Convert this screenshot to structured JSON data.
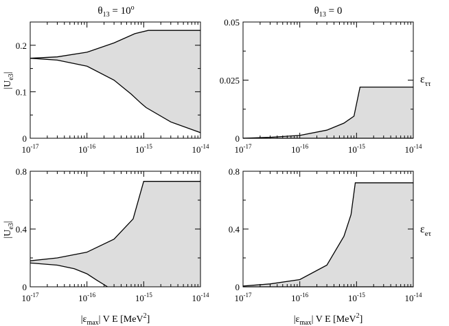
{
  "figure": {
    "column_titles": [
      {
        "base": "θ",
        "sub": "13",
        "rest": " = 10",
        "sup": "o"
      },
      {
        "base": "θ",
        "sub": "13",
        "rest": " = 0",
        "sup": ""
      }
    ],
    "row_labels": [
      {
        "base": "ε",
        "sub": "ττ"
      },
      {
        "base": "ε",
        "sub": "eτ"
      }
    ],
    "ylabel": {
      "base": "|U",
      "sub": "e3",
      "end": "|"
    },
    "xlabel": {
      "a": "|ε",
      "sub": "max",
      "b": "| V E  [MeV",
      "sup": "2",
      "c": "]"
    }
  },
  "colors": {
    "fill": "#dddddd",
    "line": "#000000",
    "axis": "#000000"
  },
  "chart_data": [
    {
      "type": "area",
      "panel": "top-left",
      "xscale": "log",
      "xlim": [
        1e-17,
        1e-14
      ],
      "ylim": [
        0,
        0.25
      ],
      "yticks": [
        {
          "v": 0,
          "label": "0"
        },
        {
          "v": 0.1,
          "label": "0.1"
        },
        {
          "v": 0.2,
          "label": "0.2"
        }
      ],
      "upper": [
        [
          1e-17,
          0.172
        ],
        [
          3e-17,
          0.175
        ],
        [
          1e-16,
          0.185
        ],
        [
          3e-16,
          0.205
        ],
        [
          7e-16,
          0.225
        ],
        [
          1.2e-15,
          0.232
        ],
        [
          1e-14,
          0.232
        ]
      ],
      "lower": [
        [
          1e-17,
          0.172
        ],
        [
          3e-17,
          0.168
        ],
        [
          1e-16,
          0.155
        ],
        [
          3e-16,
          0.125
        ],
        [
          6e-16,
          0.095
        ],
        [
          9e-16,
          0.075
        ],
        [
          1.1e-15,
          0.066
        ],
        [
          3e-15,
          0.035
        ],
        [
          1e-14,
          0.012
        ]
      ]
    },
    {
      "type": "area",
      "panel": "top-right",
      "xscale": "log",
      "xlim": [
        1e-17,
        1e-14
      ],
      "ylim": [
        0,
        0.05
      ],
      "yticks": [
        {
          "v": 0,
          "label": "0"
        },
        {
          "v": 0.025,
          "label": "0.025"
        },
        {
          "v": 0.05,
          "label": "0.05"
        }
      ],
      "upper": [
        [
          1e-17,
          0.0
        ],
        [
          3e-17,
          0.0004
        ],
        [
          1e-16,
          0.0012
        ],
        [
          3e-16,
          0.0035
        ],
        [
          6e-16,
          0.0065
        ],
        [
          9e-16,
          0.0095
        ],
        [
          1.15e-15,
          0.022
        ],
        [
          1e-14,
          0.022
        ]
      ],
      "lower": [
        [
          1e-17,
          0.0
        ],
        [
          1e-14,
          0.0
        ]
      ]
    },
    {
      "type": "area",
      "panel": "bottom-left",
      "xscale": "log",
      "xlim": [
        1e-17,
        1e-14
      ],
      "ylim": [
        0,
        0.8
      ],
      "yticks": [
        {
          "v": 0,
          "label": "0"
        },
        {
          "v": 0.4,
          "label": "0.4"
        },
        {
          "v": 0.8,
          "label": "0.8"
        }
      ],
      "upper": [
        [
          1e-17,
          0.18
        ],
        [
          3e-17,
          0.2
        ],
        [
          1e-16,
          0.24
        ],
        [
          3e-16,
          0.33
        ],
        [
          6.5e-16,
          0.47
        ],
        [
          1e-15,
          0.73
        ],
        [
          1e-14,
          0.73
        ]
      ],
      "lower": [
        [
          1e-17,
          0.165
        ],
        [
          3e-17,
          0.15
        ],
        [
          6e-17,
          0.125
        ],
        [
          1e-16,
          0.09
        ],
        [
          1.5e-16,
          0.045
        ],
        [
          2.3e-16,
          0.0
        ]
      ]
    },
    {
      "type": "area",
      "panel": "bottom-right",
      "xscale": "log",
      "xlim": [
        1e-17,
        1e-14
      ],
      "ylim": [
        0,
        0.8
      ],
      "yticks": [
        {
          "v": 0,
          "label": "0"
        },
        {
          "v": 0.4,
          "label": "0.4"
        },
        {
          "v": 0.8,
          "label": "0.8"
        }
      ],
      "upper": [
        [
          1e-17,
          0.005
        ],
        [
          3e-17,
          0.02
        ],
        [
          1e-16,
          0.05
        ],
        [
          3e-16,
          0.15
        ],
        [
          6e-16,
          0.35
        ],
        [
          8e-16,
          0.5
        ],
        [
          9.5e-16,
          0.72
        ],
        [
          1e-14,
          0.72
        ]
      ],
      "lower": [
        [
          1e-17,
          0.0
        ],
        [
          1e-14,
          0.0
        ]
      ]
    }
  ],
  "xticks": [
    {
      "exp": -17,
      "base": "10",
      "sup": "-17"
    },
    {
      "exp": -16,
      "base": "10",
      "sup": "-16"
    },
    {
      "exp": -15,
      "base": "10",
      "sup": "-15"
    },
    {
      "exp": -14,
      "base": "10",
      "sup": "-14"
    }
  ]
}
